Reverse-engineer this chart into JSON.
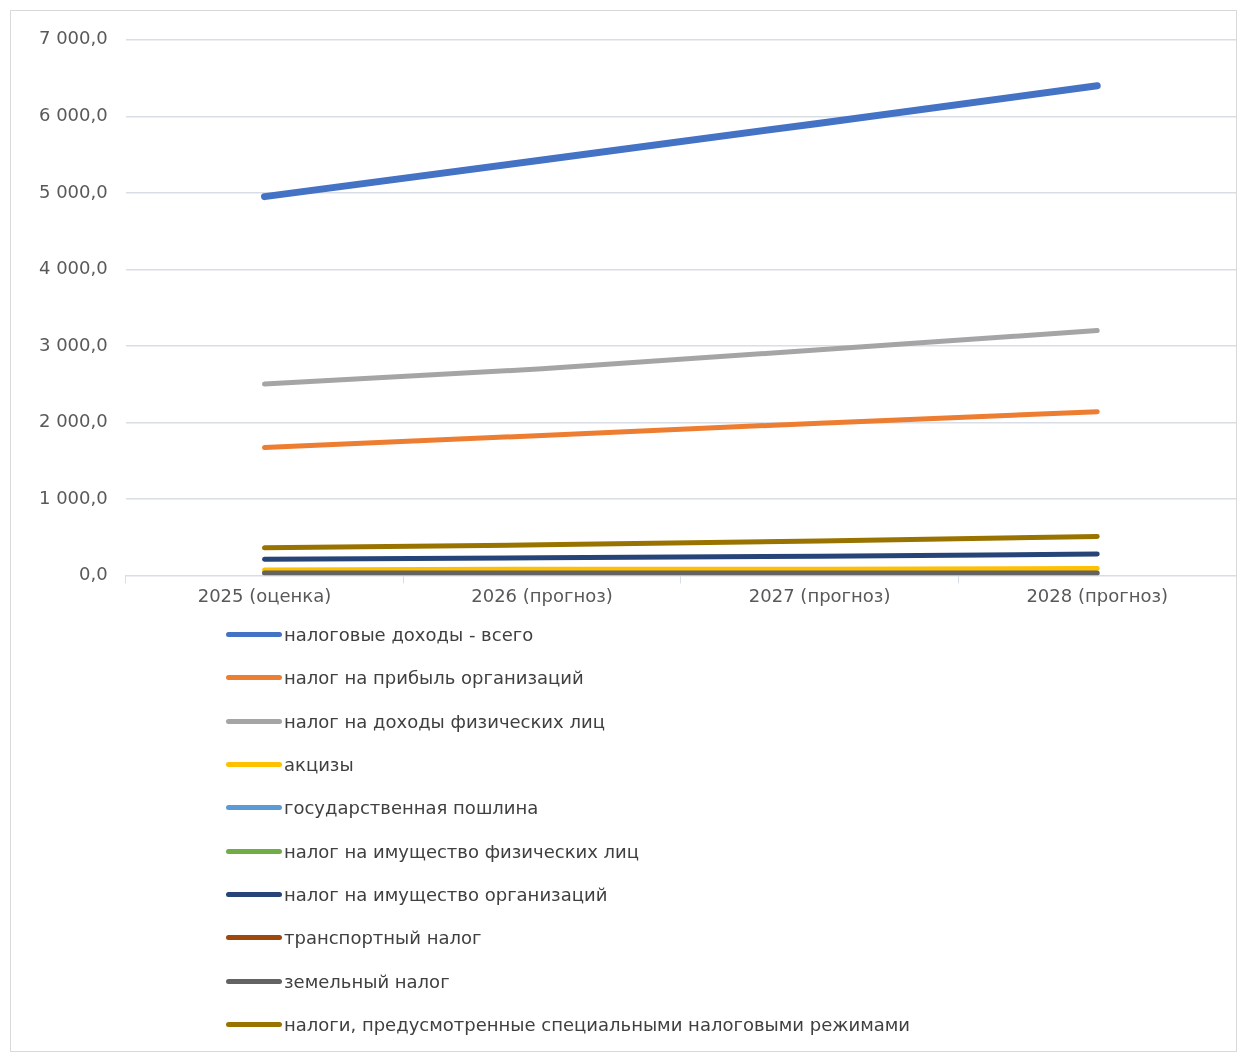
{
  "chart_data": {
    "type": "line",
    "categories": [
      "2025 (оценка)",
      "2026 (прогноз)",
      "2027 (прогноз)",
      "2028 (прогноз)"
    ],
    "ylim": [
      0,
      7000
    ],
    "yticks": [
      {
        "value": 0,
        "label": "0,0"
      },
      {
        "value": 1000,
        "label": "1 000,0"
      },
      {
        "value": 2000,
        "label": "2 000,0"
      },
      {
        "value": 3000,
        "label": "3 000,0"
      },
      {
        "value": 4000,
        "label": "4 000,0"
      },
      {
        "value": 5000,
        "label": "5 000,0"
      },
      {
        "value": 6000,
        "label": "6 000,0"
      },
      {
        "value": 7000,
        "label": "7 000,0"
      }
    ],
    "grid": "y",
    "legend": "bottom",
    "marker": "none",
    "line_style": "solid",
    "series": [
      {
        "name": "налоговые доходы - всего",
        "color": "#4472c4",
        "values": [
          4950,
          5430,
          5910,
          6400
        ]
      },
      {
        "name": "налог на прибыль организаций",
        "color": "#ed7d31",
        "values": [
          1670,
          1830,
          1990,
          2140
        ]
      },
      {
        "name": "налог на доходы физических лиц",
        "color": "#a5a5a5",
        "values": [
          2500,
          2700,
          2950,
          3200
        ]
      },
      {
        "name": "акцизы",
        "color": "#ffc000",
        "values": [
          70,
          80,
          80,
          90
        ]
      },
      {
        "name": "государственная пошлина",
        "color": "#5b9bd5",
        "values": [
          null,
          null,
          null,
          null
        ]
      },
      {
        "name": "налог на имущество физических лиц",
        "color": "#70ad47",
        "values": [
          null,
          null,
          null,
          null
        ]
      },
      {
        "name": "налог на имущество организаций",
        "color": "#264478",
        "values": [
          210,
          230,
          250,
          280
        ]
      },
      {
        "name": "транспортный налог",
        "color": "#9e480e",
        "values": [
          null,
          null,
          null,
          null
        ]
      },
      {
        "name": "земельный налог",
        "color": "#636363",
        "values": [
          30,
          30,
          30,
          30
        ]
      },
      {
        "name": "налоги, предусмотренные специальными налоговыми режимами",
        "color": "#997300",
        "values": [
          360,
          400,
          450,
          510
        ]
      }
    ]
  }
}
